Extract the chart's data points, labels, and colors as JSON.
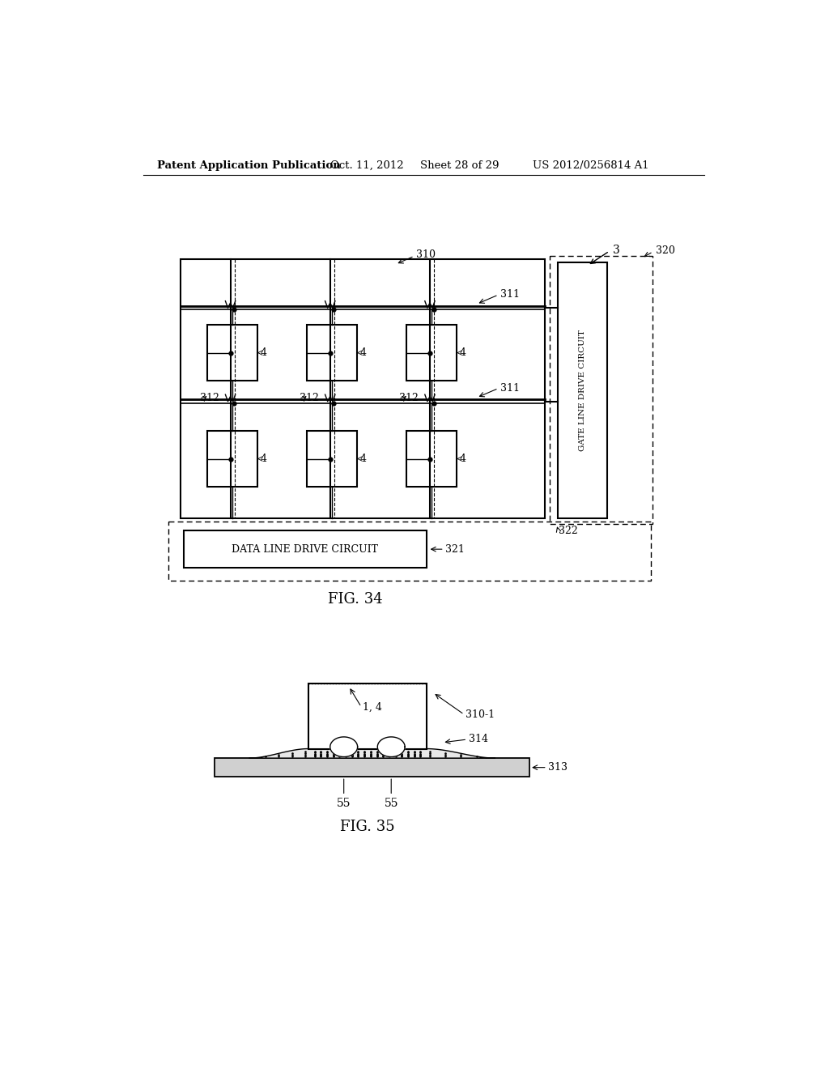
{
  "bg_color": "#ffffff",
  "header_text": "Patent Application Publication",
  "header_date": "Oct. 11, 2012",
  "header_sheet": "Sheet 28 of 29",
  "header_patent": "US 2012/0256814 A1",
  "fig34_label": "FIG. 34",
  "fig35_label": "FIG. 35",
  "label_3": "3",
  "label_310": "310",
  "label_311_top": "311",
  "label_311_mid": "311",
  "label_312": "312",
  "label_320": "320",
  "label_321": "321",
  "label_322": "322",
  "label_4": "4",
  "label_310_1": "310-1",
  "label_1_4": "1, 4",
  "label_313": "313",
  "label_314": "314",
  "label_55a": "55",
  "label_55b": "55",
  "gate_line_text": "GATE LINE DRIVE CIRCUIT",
  "data_line_text": "DATA LINE DRIVE CIRCUIT"
}
